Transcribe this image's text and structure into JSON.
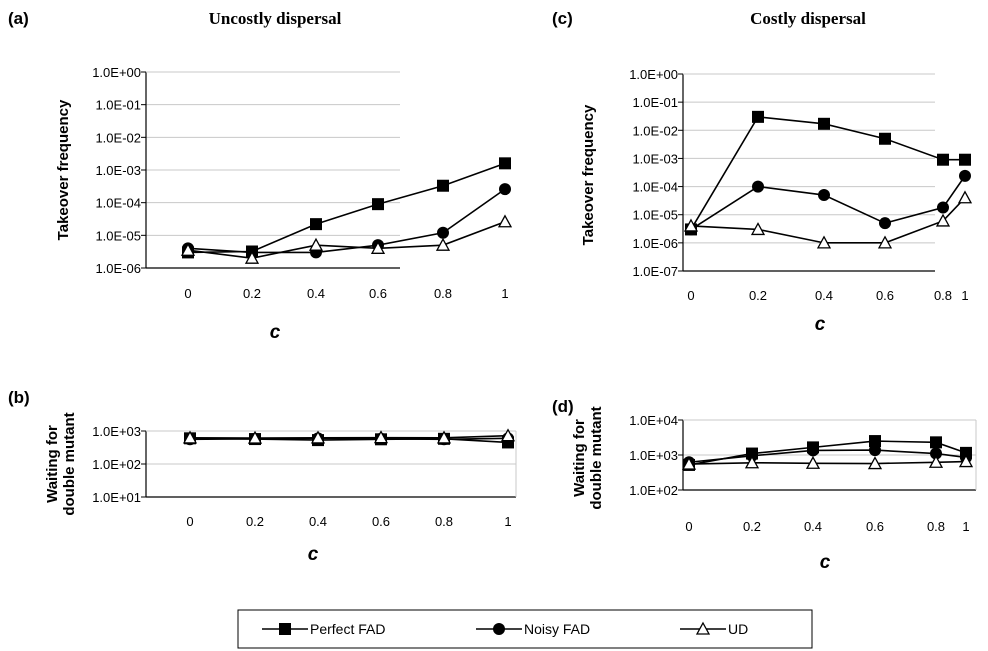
{
  "legend": [
    {
      "name": "Perfect FAD",
      "marker": "square"
    },
    {
      "name": "Noisy FAD",
      "marker": "circle"
    },
    {
      "name": "UD",
      "marker": "triangle"
    }
  ],
  "chart_data": [
    {
      "panel": "(a)",
      "title": "Uncostly dispersal",
      "type": "line",
      "log_scale_y": true,
      "ylabel": "Takeover frequency",
      "xlabel": "c",
      "x": [
        0,
        0.2,
        0.4,
        0.6,
        0.8,
        1
      ],
      "x_tick_labels": [
        "0",
        "0.2",
        "0.4",
        "0.6",
        "0.8",
        "1"
      ],
      "y_tick_labels": [
        "1.0E+00",
        "1.0E-01",
        "1.0E-02",
        "1.0E-03",
        "1.0E-04",
        "1.0E-05",
        "1.0E-06"
      ],
      "ylim": [
        1e-06,
        1
      ],
      "gridlines": true,
      "series": [
        {
          "name": "Perfect FAD",
          "values": [
            3e-06,
            3.2e-06,
            2.2e-05,
            9e-05,
            0.00033,
            0.0016
          ]
        },
        {
          "name": "Noisy FAD",
          "values": [
            4e-06,
            3e-06,
            3e-06,
            5e-06,
            1.2e-05,
            0.00026
          ]
        },
        {
          "name": "UD",
          "values": [
            3.5e-06,
            2e-06,
            5e-06,
            4e-06,
            5e-06,
            2.6e-05
          ]
        }
      ]
    },
    {
      "panel": "(c)",
      "title": "Costly dispersal",
      "type": "line",
      "log_scale_y": true,
      "ylabel": "Takeover frequency",
      "xlabel": "c",
      "x": [
        0,
        0.2,
        0.4,
        0.6,
        0.8,
        1
      ],
      "x_tick_labels": [
        "0",
        "0.2",
        "0.4",
        "0.6",
        "0.8",
        "1"
      ],
      "y_tick_labels": [
        "1.0E+00",
        "1.0E-01",
        "1.0E-02",
        "1.0E-03",
        "1.0E-04",
        "1.0E-05",
        "1.0E-06",
        "1.0E-07"
      ],
      "ylim": [
        1e-07,
        1
      ],
      "gridlines": true,
      "series": [
        {
          "name": "Perfect FAD",
          "values": [
            3e-06,
            0.03,
            0.017,
            0.005,
            0.0009,
            0.0009
          ]
        },
        {
          "name": "Noisy FAD",
          "values": [
            3e-06,
            0.0001,
            5e-05,
            5e-06,
            1.8e-05,
            0.00024
          ]
        },
        {
          "name": "UD",
          "values": [
            4e-06,
            3e-06,
            1e-06,
            1e-06,
            6e-06,
            4e-05
          ]
        }
      ]
    },
    {
      "panel": "(b)",
      "title": "",
      "type": "line",
      "log_scale_y": true,
      "ylabel": "Waiting for double mutant",
      "xlabel": "c",
      "x": [
        0,
        0.2,
        0.4,
        0.6,
        0.8,
        1
      ],
      "x_tick_labels": [
        "0",
        "0.2",
        "0.4",
        "0.6",
        "0.8",
        "1"
      ],
      "y_tick_labels": [
        "1.0E+03",
        "1.0E+02",
        "1.0E+01"
      ],
      "ylim": [
        10,
        1000
      ],
      "gridlines": true,
      "series": [
        {
          "name": "Perfect FAD",
          "values": [
            600,
            570,
            530,
            560,
            580,
            450
          ]
        },
        {
          "name": "Noisy FAD",
          "values": [
            560,
            580,
            600,
            580,
            560,
            600
          ]
        },
        {
          "name": "UD",
          "values": [
            620,
            610,
            620,
            630,
            620,
            720
          ]
        }
      ]
    },
    {
      "panel": "(d)",
      "title": "",
      "type": "line",
      "log_scale_y": true,
      "ylabel": "Waiting for double mutant",
      "xlabel": "c",
      "x": [
        0,
        0.2,
        0.4,
        0.6,
        0.8,
        1
      ],
      "x_tick_labels": [
        "0",
        "0.2",
        "0.4",
        "0.6",
        "0.8",
        "1"
      ],
      "y_tick_labels": [
        "1.0E+04",
        "1.0E+03",
        "1.0E+02"
      ],
      "ylim": [
        100,
        10000
      ],
      "gridlines": true,
      "series": [
        {
          "name": "Perfect FAD",
          "values": [
            520,
            1100,
            1650,
            2500,
            2300,
            1150
          ]
        },
        {
          "name": "Noisy FAD",
          "values": [
            620,
            950,
            1350,
            1380,
            1100,
            850
          ]
        },
        {
          "name": "UD",
          "values": [
            550,
            600,
            580,
            570,
            620,
            650
          ]
        }
      ]
    }
  ]
}
